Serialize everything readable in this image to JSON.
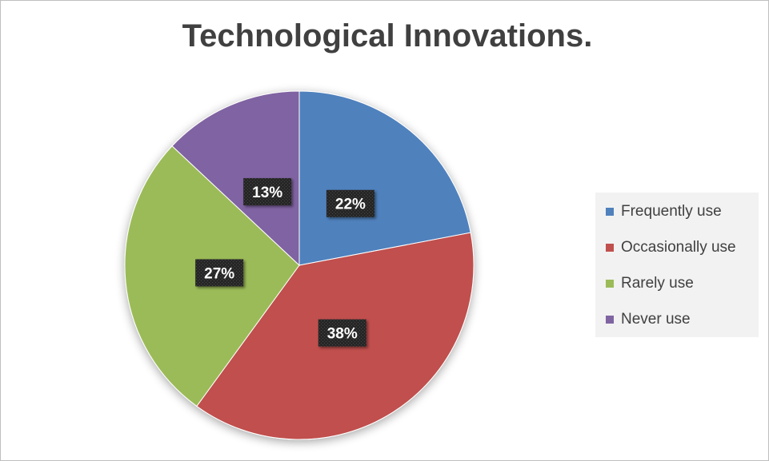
{
  "chart_data": {
    "type": "pie",
    "title": "Technological Innovations.",
    "categories": [
      "Frequently use",
      "Occasionally use",
      "Rarely use",
      "Never use"
    ],
    "values": [
      22,
      38,
      27,
      13
    ],
    "data_labels": [
      "22%",
      "38%",
      "27%",
      "13%"
    ],
    "colors": [
      "#4f81bd",
      "#c0504d",
      "#9bbb59",
      "#8064a2"
    ],
    "start_angle": "12 o'clock",
    "direction": "clockwise",
    "legend_position": "right",
    "label_style": "white bold text on dark box"
  }
}
